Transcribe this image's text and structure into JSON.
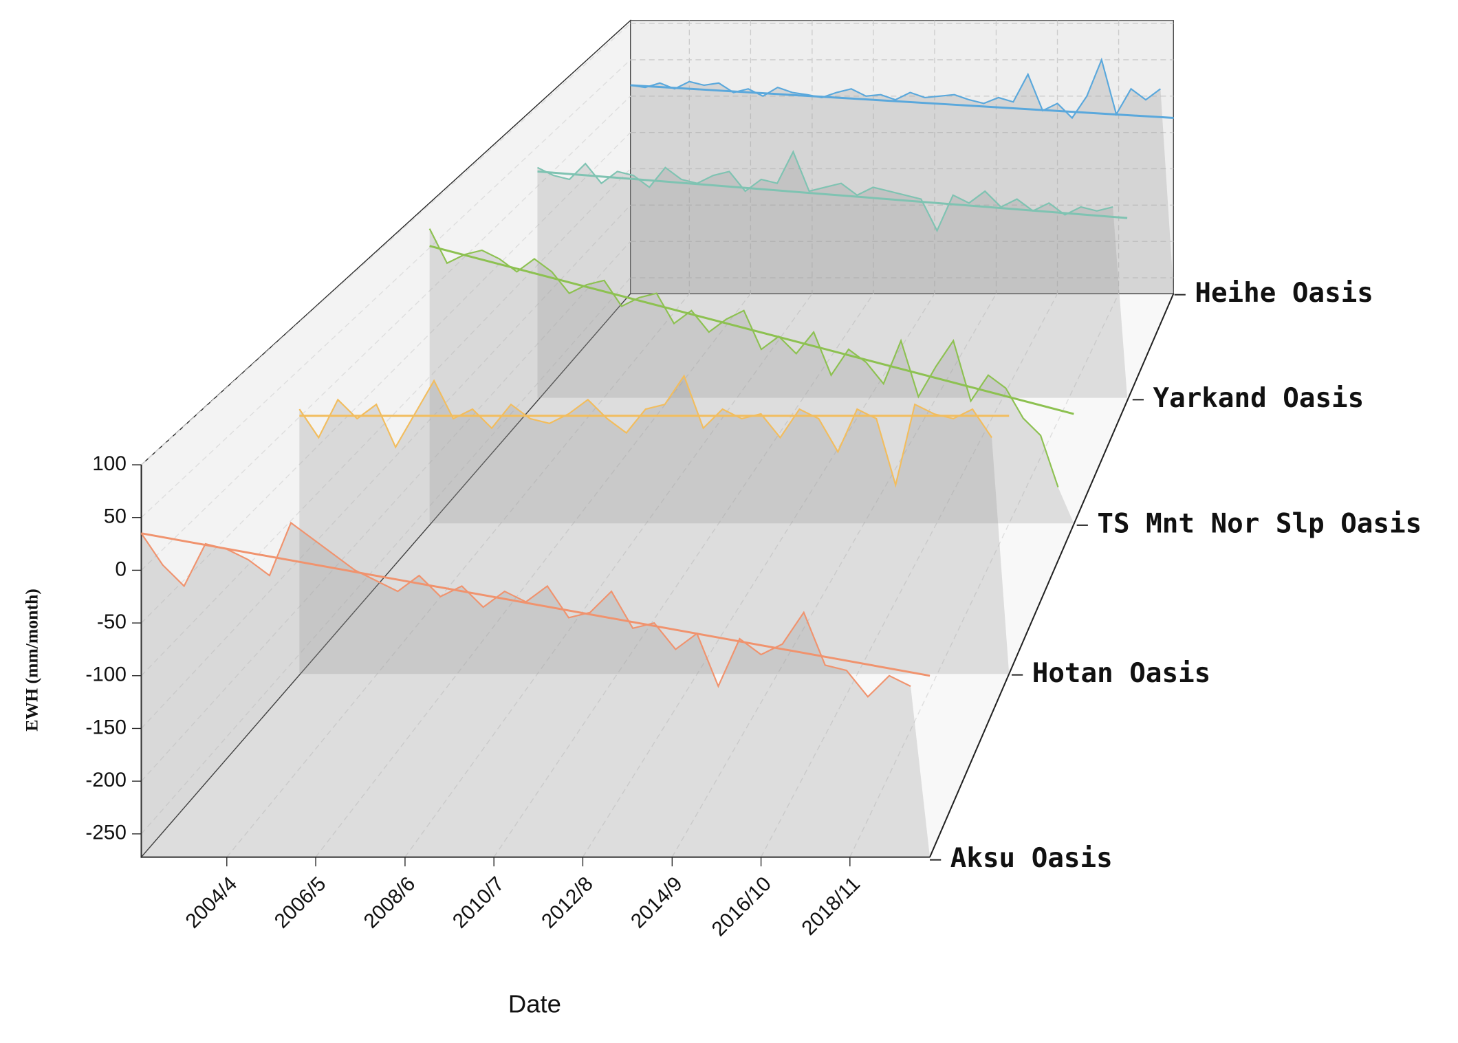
{
  "chart_data": {
    "type": "line3d",
    "xlabel": "Date",
    "ylabel": "EWH (mm/month)",
    "xlim": [
      2002.25,
      2020.7
    ],
    "xticks": [
      {
        "value": 2004.25,
        "label": "2004/4"
      },
      {
        "value": 2006.33,
        "label": "2006/5"
      },
      {
        "value": 2008.42,
        "label": "2008/6"
      },
      {
        "value": 2010.5,
        "label": "2010/7"
      },
      {
        "value": 2012.58,
        "label": "2012/8"
      },
      {
        "value": 2014.67,
        "label": "2014/9"
      },
      {
        "value": 2016.75,
        "label": "2016/10"
      },
      {
        "value": 2018.83,
        "label": "2018/11"
      }
    ],
    "ylim": [
      -272,
      100
    ],
    "yticks": [
      100,
      50,
      0,
      -50,
      -100,
      -150,
      -200,
      -250
    ],
    "x": [
      2002.25,
      2002.75,
      2003.25,
      2003.75,
      2004.25,
      2004.75,
      2005.25,
      2005.75,
      2006.25,
      2006.75,
      2007.25,
      2007.75,
      2008.25,
      2008.75,
      2009.25,
      2009.75,
      2010.25,
      2010.75,
      2011.25,
      2011.75,
      2012.25,
      2012.75,
      2013.25,
      2013.75,
      2014.25,
      2014.75,
      2015.25,
      2015.75,
      2016.25,
      2016.75,
      2017.25,
      2017.75,
      2018.25,
      2018.75,
      2019.25,
      2019.75,
      2020.25
    ],
    "series": [
      {
        "name": "Aksu Oasis",
        "color": "#f0936e",
        "trend": [
          35,
          -100
        ],
        "values": [
          35,
          5,
          -15,
          25,
          20,
          10,
          -5,
          45,
          30,
          15,
          0,
          -10,
          -20,
          -5,
          -25,
          -15,
          -35,
          -20,
          -30,
          -15,
          -45,
          -40,
          -20,
          -55,
          -50,
          -75,
          -60,
          -110,
          -65,
          -80,
          -70,
          -40,
          -90,
          -95,
          -120,
          -100,
          -110
        ]
      },
      {
        "name": "Hotan Oasis",
        "color": "#f2bd5e",
        "trend": [
          0,
          0
        ],
        "values": [
          7,
          -23,
          17,
          -3,
          12,
          -33,
          2,
          37,
          -3,
          7,
          -13,
          12,
          -3,
          -8,
          2,
          17,
          -3,
          -18,
          7,
          12,
          42,
          -13,
          7,
          -3,
          2,
          -23,
          7,
          -3,
          -38,
          7,
          -3,
          -73,
          12,
          2,
          -3,
          7,
          -23
        ]
      },
      {
        "name": "TS Mnt Nor Slp Oasis",
        "color": "#8dc151",
        "trend": [
          50,
          -145
        ],
        "values": [
          70,
          30,
          40,
          45,
          35,
          20,
          35,
          20,
          -5,
          5,
          10,
          -20,
          -10,
          -5,
          -40,
          -25,
          -50,
          -35,
          -25,
          -70,
          -55,
          -75,
          -50,
          -100,
          -70,
          -85,
          -110,
          -60,
          -125,
          -90,
          -60,
          -130,
          -100,
          -115,
          -150,
          -170,
          -230
        ]
      },
      {
        "name": "Yarkand Oasis",
        "color": "#7fc3b2",
        "trend": [
          15,
          -44
        ],
        "values": [
          20,
          10,
          5,
          25,
          0,
          15,
          10,
          -5,
          20,
          5,
          0,
          10,
          15,
          -10,
          5,
          0,
          40,
          -10,
          -5,
          0,
          -15,
          -5,
          -10,
          -15,
          -20,
          -60,
          -15,
          -25,
          -10,
          -30,
          -20,
          -35,
          -25,
          -40,
          -30,
          -35,
          -30
        ]
      },
      {
        "name": "Heihe Oasis",
        "color": "#5aa8dc",
        "trend": [
          15,
          -30
        ],
        "values": [
          15,
          12,
          18,
          10,
          20,
          15,
          18,
          5,
          10,
          0,
          12,
          5,
          2,
          -2,
          5,
          10,
          0,
          2,
          -5,
          5,
          -2,
          0,
          2,
          -5,
          -10,
          -2,
          -8,
          30,
          -20,
          -10,
          -30,
          0,
          50,
          -25,
          10,
          -5,
          10
        ]
      }
    ]
  }
}
